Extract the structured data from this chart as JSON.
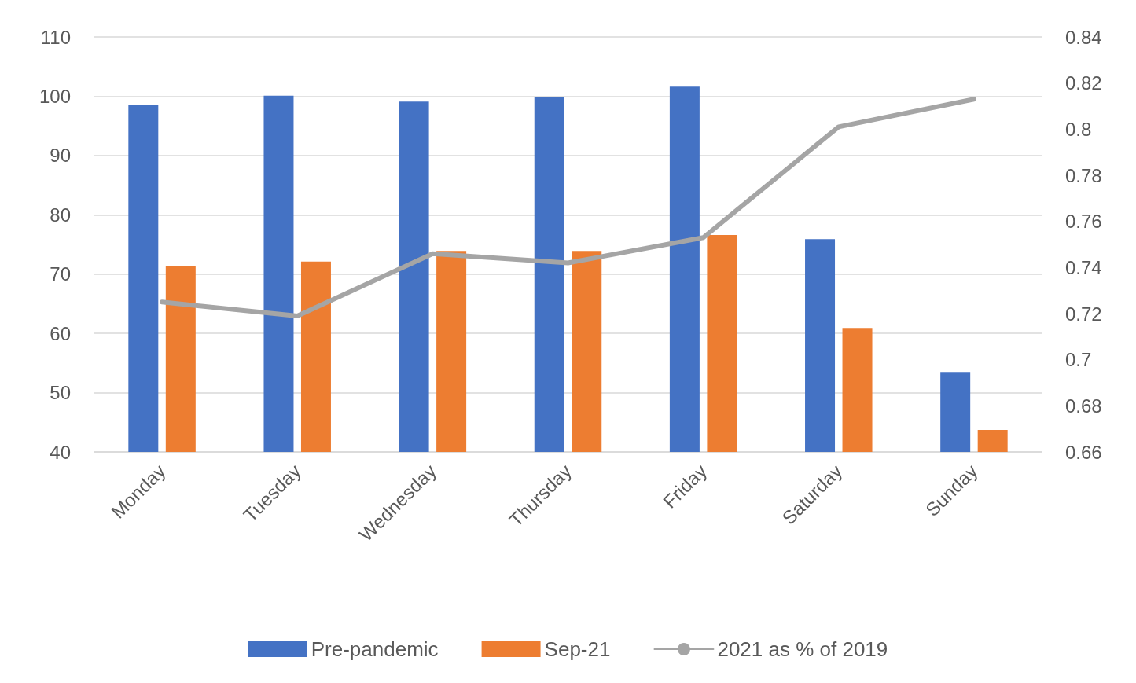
{
  "chart_data": {
    "type": "bar",
    "categories": [
      "Monday",
      "Tuesday",
      "Wednesday",
      "Thursday",
      "Friday",
      "Saturday",
      "Sunday"
    ],
    "series": [
      {
        "name": "Pre-pandemic",
        "color": "#4472c4",
        "values": [
          98.6,
          100.1,
          99.1,
          99.8,
          101.6,
          75.9,
          53.5
        ]
      },
      {
        "name": "Sep-21",
        "color": "#ed7d31",
        "values": [
          71.4,
          72.1,
          73.9,
          73.9,
          76.6,
          60.9,
          43.7
        ]
      },
      {
        "name": "2021 as % of 2019",
        "color": "#a5a5a5",
        "type": "line",
        "axis": "y2",
        "values": [
          0.725,
          0.719,
          0.746,
          0.742,
          0.753,
          0.801,
          0.813
        ]
      }
    ],
    "ylim": [
      40,
      110
    ],
    "yticks": [
      40,
      50,
      60,
      70,
      80,
      90,
      100,
      110
    ],
    "y2lim": [
      0.66,
      0.84
    ],
    "y2ticks": [
      0.66,
      0.68,
      0.7,
      0.72,
      0.74,
      0.76,
      0.78,
      0.8,
      0.82,
      0.84
    ],
    "grid": "y",
    "legend": "bottom",
    "marker": "none",
    "line_style": "solid"
  }
}
